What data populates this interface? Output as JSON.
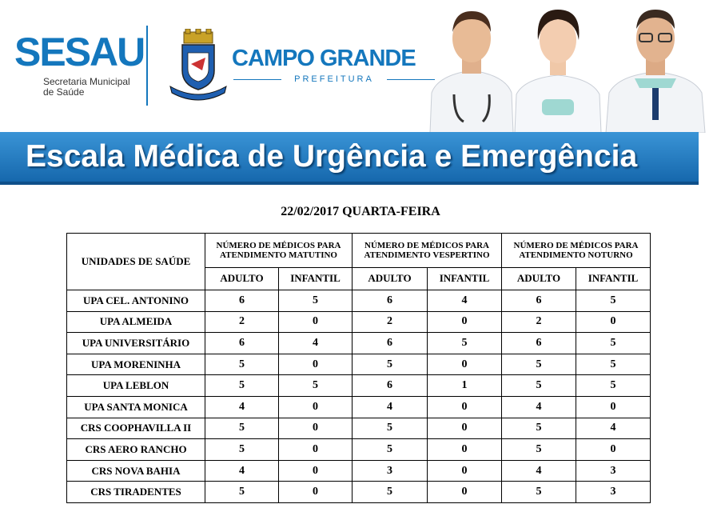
{
  "header": {
    "brand": "SESAU",
    "brand_sub_line1": "Secretaria Municipal",
    "brand_sub_line2": "de Saúde",
    "city_name": "CAMPO GRANDE",
    "city_sub": "PREFEITURA",
    "crest_icon": "city-crest-icon",
    "doctors_image": "three-doctors-photo",
    "colors": {
      "brand_blue": "#1477bd",
      "banner_blue": "#1e78c0"
    }
  },
  "banner": {
    "title": "Escala Médica de Urgência e Emergência"
  },
  "date_title": "22/02/2017 QUARTA-FEIRA",
  "table": {
    "unit_header": "UNIDADES DE SAÚDE",
    "periods": [
      {
        "label": "NÚMERO DE MÉDICOS PARA ATENDIMENTO MATUTINO"
      },
      {
        "label": "NÚMERO DE MÉDICOS PARA ATENDIMENTO VESPERTINO"
      },
      {
        "label": "NÚMERO DE MÉDICOS PARA ATENDIMENTO NOTURNO"
      }
    ],
    "sub_headers": [
      "ADULTO",
      "INFANTIL",
      "ADULTO",
      "INFANTIL",
      "ADULTO",
      "INFANTIL"
    ],
    "rows": [
      {
        "unit": "UPA CEL. ANTONINO",
        "values": [
          "6",
          "5",
          "6",
          "4",
          "6",
          "5"
        ]
      },
      {
        "unit": "UPA ALMEIDA",
        "values": [
          "2",
          "0",
          "2",
          "0",
          "2",
          "0"
        ]
      },
      {
        "unit": "UPA UNIVERSITÁRIO",
        "values": [
          "6",
          "4",
          "6",
          "5",
          "6",
          "5"
        ]
      },
      {
        "unit": "UPA MORENINHA",
        "values": [
          "5",
          "0",
          "5",
          "0",
          "5",
          "5"
        ]
      },
      {
        "unit": "UPA LEBLON",
        "values": [
          "5",
          "5",
          "6",
          "1",
          "5",
          "5"
        ]
      },
      {
        "unit": "UPA SANTA MONICA",
        "values": [
          "4",
          "0",
          "4",
          "0",
          "4",
          "0"
        ]
      },
      {
        "unit": "CRS COOPHAVILLA II",
        "values": [
          "5",
          "0",
          "5",
          "0",
          "5",
          "4"
        ]
      },
      {
        "unit": "CRS AERO RANCHO",
        "values": [
          "5",
          "0",
          "5",
          "0",
          "5",
          "0"
        ]
      },
      {
        "unit": "CRS NOVA BAHIA",
        "values": [
          "4",
          "0",
          "3",
          "0",
          "4",
          "3"
        ]
      },
      {
        "unit": "CRS TIRADENTES",
        "values": [
          "5",
          "0",
          "5",
          "0",
          "5",
          "3"
        ]
      }
    ]
  }
}
